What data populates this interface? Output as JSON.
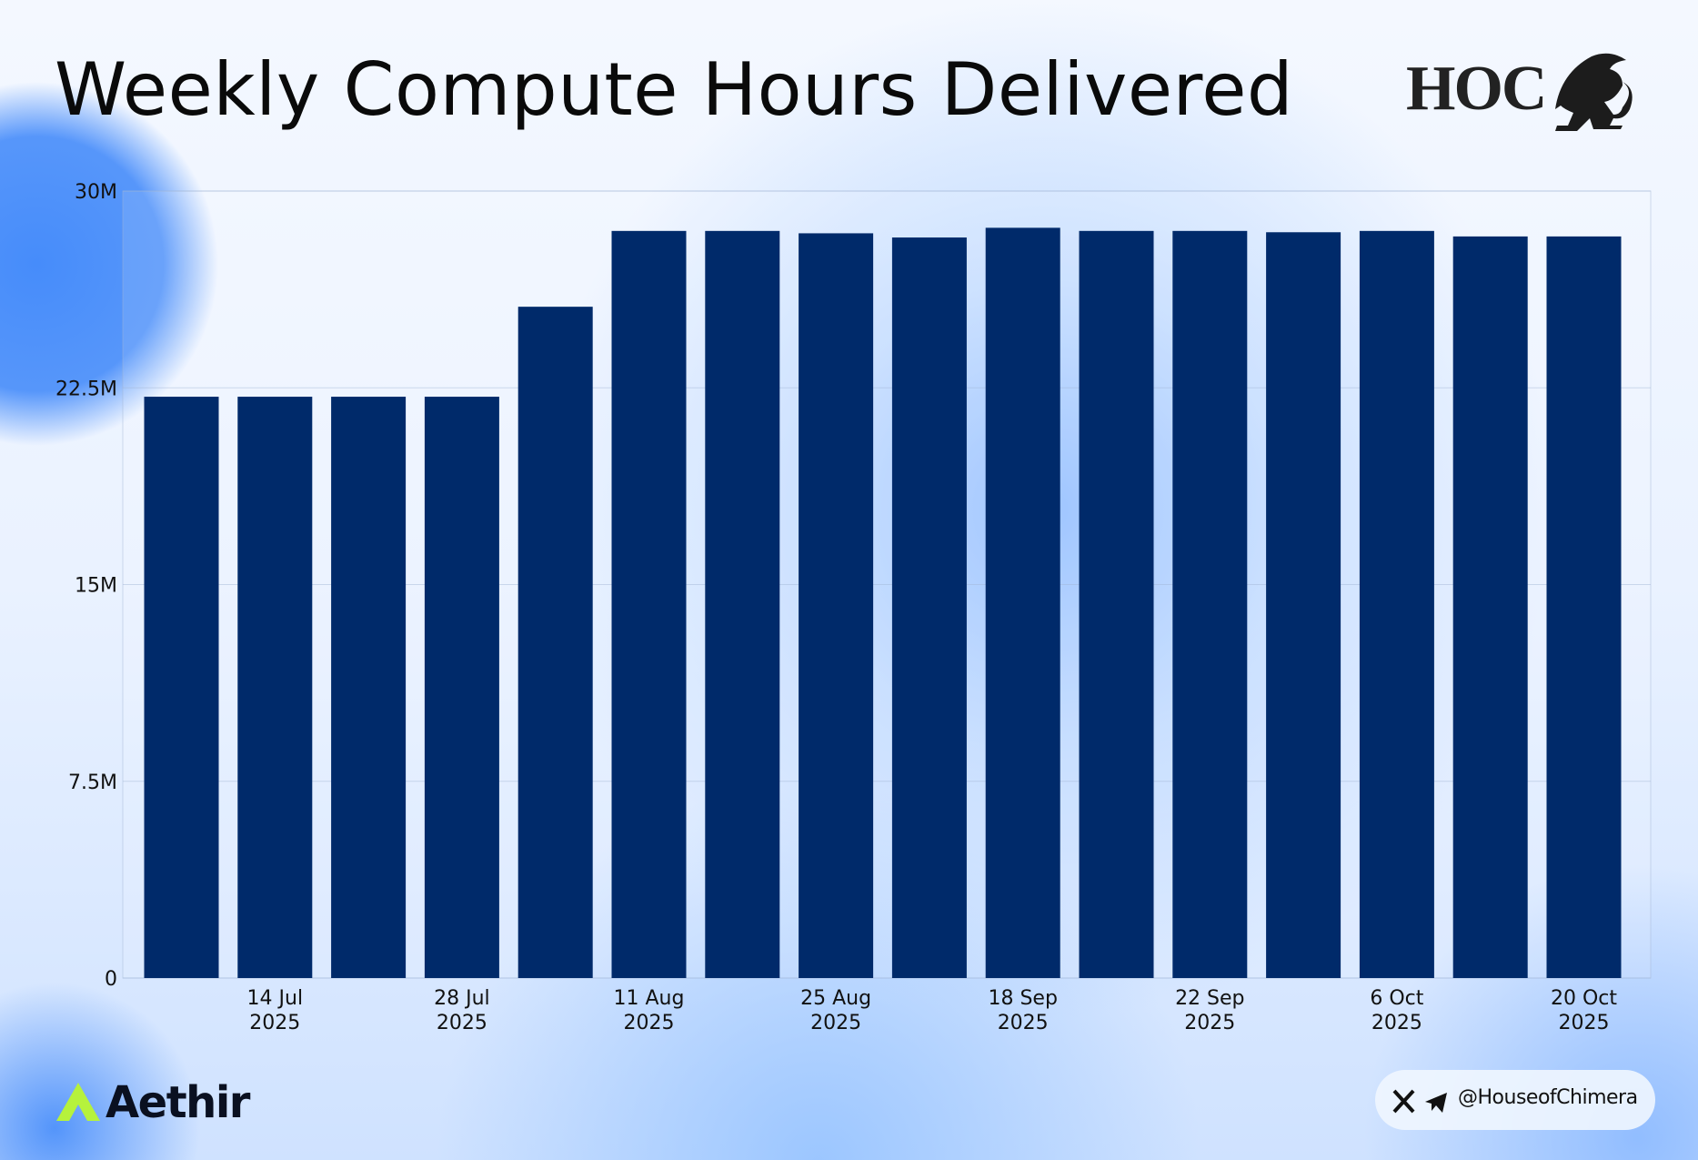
{
  "chart_data": {
    "type": "bar",
    "title": "Weekly Compute Hours Delivered",
    "categories": [
      null,
      "14 Jul\n2025",
      null,
      "28 Jul\n2025",
      null,
      "11 Aug\n2025",
      null,
      "25 Aug\n2025",
      null,
      "18 Sep\n2025",
      null,
      "22 Sep\n2025",
      null,
      "6 Oct\n2025",
      null,
      "20 Oct\n2025"
    ],
    "values": [
      22160000,
      22160000,
      22160000,
      22160000,
      25590000,
      28480000,
      28480000,
      28390000,
      28230000,
      28600000,
      28480000,
      28480000,
      28430000,
      28480000,
      28270000,
      28270000
    ],
    "color": "#002a6a",
    "ylim": [
      0,
      30000000
    ],
    "yticks": [
      0,
      {
        "value": 7500000,
        "label": "7.5M"
      },
      {
        "value": 15000000,
        "label": "15M"
      },
      {
        "value": 22500000,
        "label": "22.5M"
      },
      {
        "value": 30000000,
        "label": "30M"
      }
    ],
    "grid": true
  },
  "branding": {
    "logo": "HOC",
    "brand": "Aethir",
    "handle": "@HouseofChimera"
  }
}
